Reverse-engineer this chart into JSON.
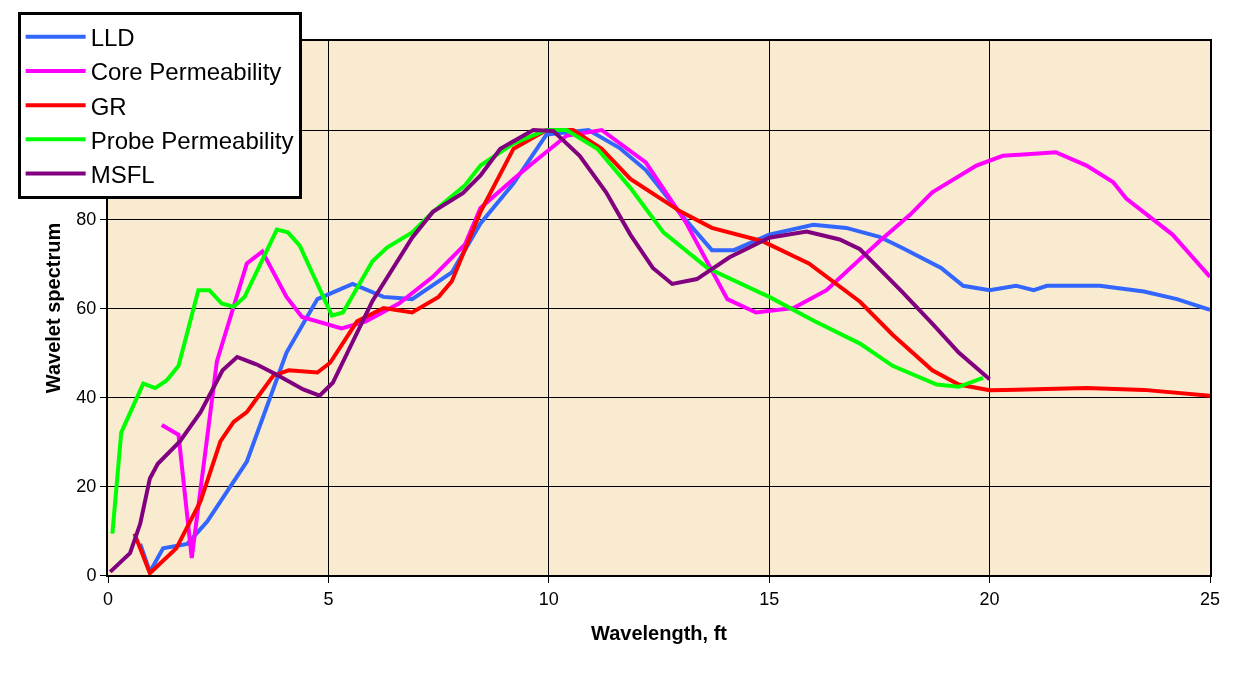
{
  "chart_data": {
    "type": "line",
    "xlabel": "Wavelength, ft",
    "ylabel": "Wavelet spectrum",
    "xlim": [
      0,
      25
    ],
    "xticks": [
      0,
      5,
      10,
      15,
      20,
      25
    ],
    "ylim": [
      0,
      120
    ],
    "yticks": [
      0,
      20,
      40,
      60,
      80,
      {
        "value": 100,
        "label": null
      },
      {
        "value": 120,
        "label": null
      }
    ],
    "grid": true,
    "legend": "top left",
    "marker": "none",
    "line_style": "solid",
    "series": [
      {
        "name": "LLD",
        "color": "#3366ff",
        "x": [
          0.73,
          0.95,
          1.25,
          1.8,
          2.25,
          3.15,
          4.05,
          4.75,
          5.55,
          6.25,
          6.9,
          7.8,
          8.45,
          9.2,
          9.95,
          10.9,
          11.6,
          12.2,
          13,
          13.7,
          14.2,
          15,
          16,
          16.75,
          17.5,
          18,
          18.9,
          19.4,
          20,
          20.6,
          21,
          21.3,
          22.5,
          23.5,
          24.25,
          25
        ],
        "values": [
          7,
          0.7,
          6,
          7,
          12,
          25.5,
          50,
          62,
          65.4,
          62.5,
          62,
          68,
          79,
          88,
          99,
          100,
          96,
          91,
          81,
          73,
          73,
          76.5,
          78.7,
          78,
          76,
          73.6,
          69,
          65,
          64,
          65,
          64,
          65,
          65,
          63.7,
          62,
          59.6
        ]
      },
      {
        "name": "Core Permeability",
        "color": "#ff00ff",
        "x": [
          1.22,
          1.6,
          1.9,
          2.47,
          3.15,
          3.5,
          4.05,
          4.4,
          5.3,
          5.85,
          6.6,
          7.37,
          8.1,
          8.45,
          9.2,
          9.65,
          10.4,
          11.2,
          12.2,
          13.1,
          14.05,
          14.7,
          15.55,
          16.3,
          17.5,
          18.2,
          18.7,
          19.7,
          20.3,
          21.5,
          22.2,
          22.8,
          23.1,
          24.15,
          25
        ],
        "values": [
          33.7,
          31.5,
          3.8,
          48,
          70,
          72.7,
          62.5,
          58,
          55.4,
          57,
          61,
          67,
          74.3,
          82.5,
          89,
          92.7,
          98.7,
          100,
          92.7,
          79.4,
          62,
          59,
          60,
          64,
          75,
          81,
          86,
          92,
          94.2,
          95,
          92,
          88.3,
          84.6,
          76.5,
          67
        ]
      },
      {
        "name": "GR",
        "color": "#ff0000",
        "x": [
          0.6,
          0.95,
          1.55,
          2.1,
          2.55,
          2.85,
          3.15,
          3.75,
          4.1,
          4.75,
          5.04,
          5.65,
          6.25,
          6.9,
          7.5,
          7.8,
          8.45,
          9.2,
          9.95,
          10.55,
          11.2,
          11.85,
          13,
          13.7,
          14.85,
          15.9,
          17.06,
          17.8,
          18.7,
          19.3,
          20,
          22.2,
          23.5,
          25
        ],
        "values": [
          9.3,
          0.4,
          6,
          16.6,
          30,
          34.4,
          36.6,
          44.8,
          46,
          45.5,
          47.7,
          57,
          60,
          59,
          62.5,
          66,
          81.6,
          95.8,
          100,
          100,
          95.8,
          89,
          81.6,
          78,
          75,
          70,
          61.4,
          54,
          46,
          42.8,
          41.5,
          42,
          41.6,
          40.3
        ]
      },
      {
        "name": "Probe Permeability",
        "color": "#00ff00",
        "x": [
          0.1,
          0.3,
          0.8,
          1.07,
          1.33,
          1.6,
          2.05,
          2.3,
          2.58,
          2.85,
          3.1,
          3.83,
          4.08,
          4.35,
          5.08,
          5.33,
          6,
          6.33,
          6.9,
          7.37,
          8.1,
          8.45,
          9.2,
          9.95,
          10.4,
          11.1,
          11.85,
          12.6,
          13.6,
          15,
          16,
          17.06,
          17.8,
          18.8,
          19.3,
          19.85
        ],
        "values": [
          9.3,
          32,
          43,
          42,
          43.7,
          47,
          64,
          64,
          61,
          60.3,
          62.5,
          77.6,
          77,
          74,
          58.3,
          59,
          70.5,
          73.6,
          77,
          81.6,
          87.6,
          92,
          97,
          100,
          100,
          95.8,
          87,
          77,
          69,
          62.5,
          57.2,
          52,
          47,
          42.8,
          42.3,
          44.3
        ]
      },
      {
        "name": "MSFL",
        "color": "#800080",
        "x": [
          0.05,
          0.5,
          0.73,
          0.95,
          1.13,
          1.63,
          2.1,
          2.6,
          2.93,
          3.4,
          3.83,
          4.43,
          4.8,
          5.1,
          6,
          6.9,
          7.37,
          8.05,
          8.45,
          8.9,
          9.65,
          10.1,
          10.7,
          11.3,
          11.85,
          12.36,
          12.8,
          13.36,
          14.1,
          15,
          15.85,
          16.6,
          17.06,
          18,
          18.7,
          19.3,
          20
        ],
        "values": [
          0.7,
          4.9,
          11.5,
          21.7,
          25,
          30,
          36.6,
          46,
          49,
          47.2,
          45,
          41.7,
          40.3,
          43.2,
          61.6,
          75.8,
          81.6,
          85.8,
          89.8,
          95.8,
          100,
          99.8,
          94.2,
          86,
          76.5,
          69,
          65.4,
          66.5,
          71.4,
          75.8,
          77.2,
          75.4,
          73.2,
          63.8,
          56.5,
          50,
          44
        ]
      }
    ]
  }
}
